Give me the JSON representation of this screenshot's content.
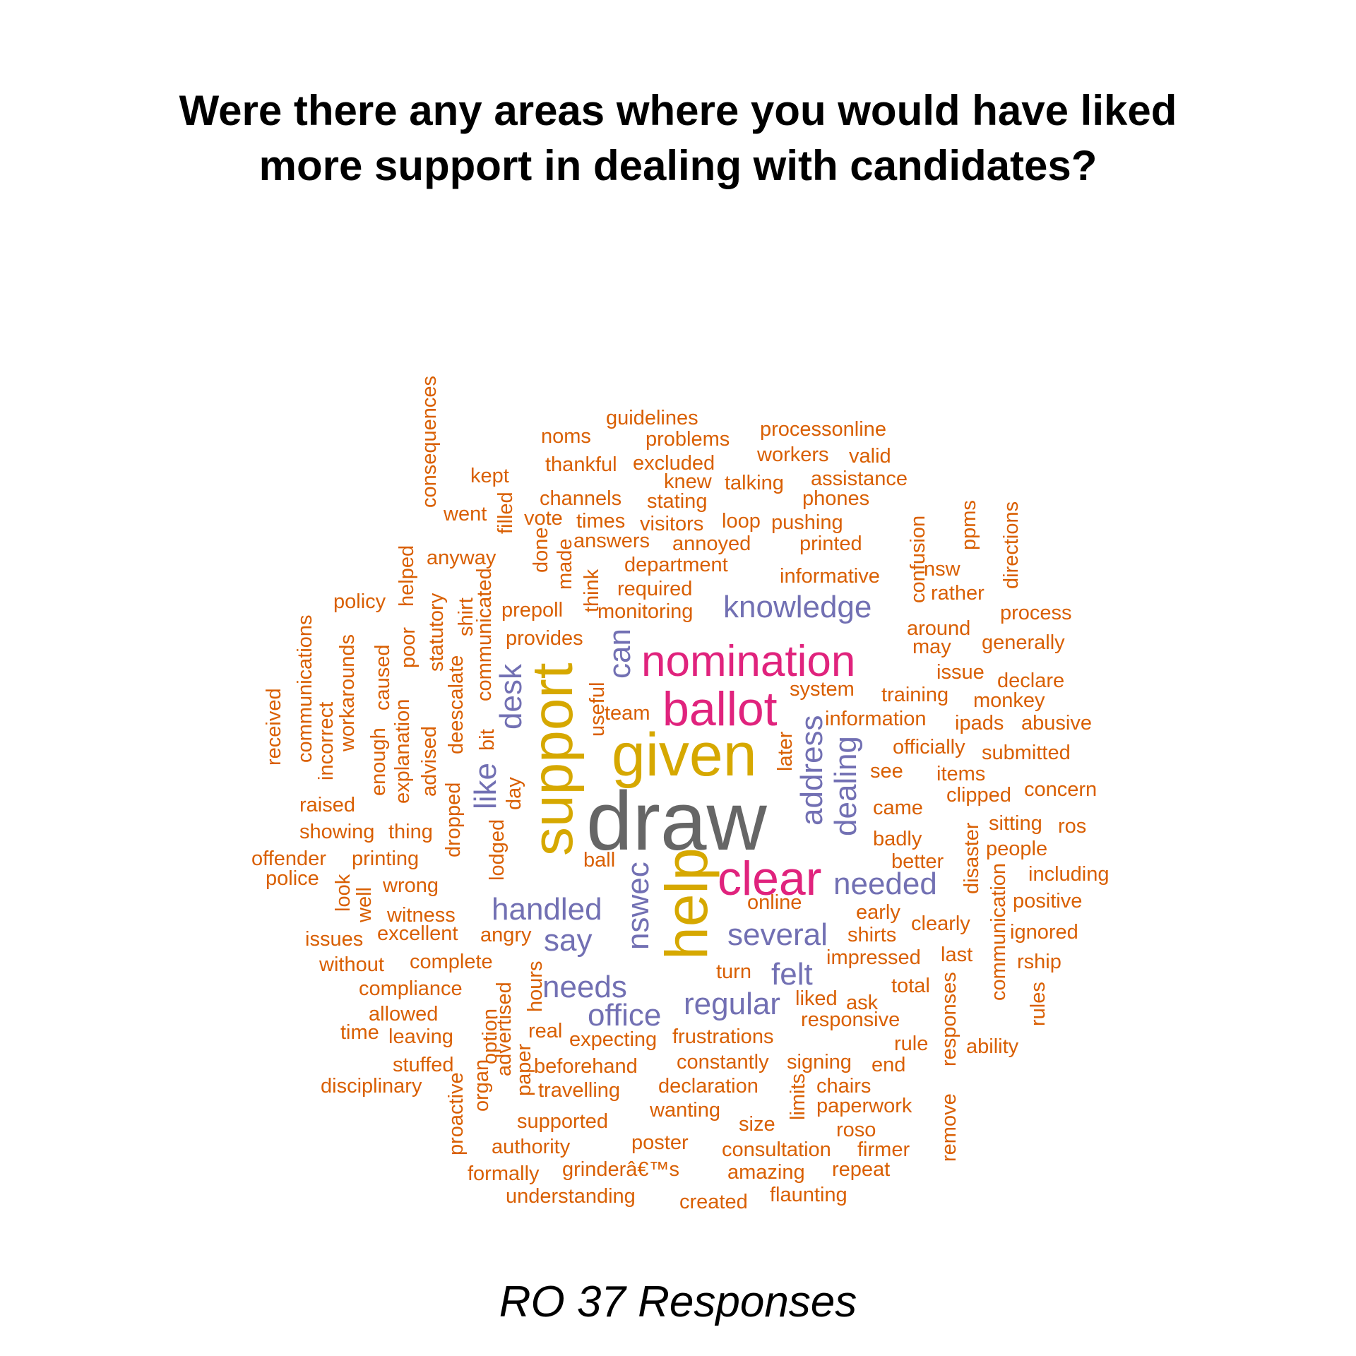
{
  "title": {
    "line1": "Were there any areas where you would have liked",
    "line2": "more support in dealing with candidates?"
  },
  "caption": "RO 37 Responses",
  "colors": {
    "tier1": "#666666",
    "tier2": "#D6A800",
    "tier3": "#E0237D",
    "tier4": "#7270B3",
    "tier5": "#D95F02"
  },
  "words": [
    {
      "text": "draw",
      "tier": 1
    },
    {
      "text": "support",
      "tier": 2
    },
    {
      "text": "given",
      "tier": 2
    },
    {
      "text": "help",
      "tier": 2
    },
    {
      "text": "nomination",
      "tier": 3
    },
    {
      "text": "ballot",
      "tier": 3
    },
    {
      "text": "clear",
      "tier": 3
    },
    {
      "text": "knowledge",
      "tier": 4
    },
    {
      "text": "handled",
      "tier": 4
    },
    {
      "text": "needed",
      "tier": 4
    },
    {
      "text": "several",
      "tier": 4
    },
    {
      "text": "regular",
      "tier": 4
    },
    {
      "text": "needs",
      "tier": 4
    },
    {
      "text": "office",
      "tier": 4
    },
    {
      "text": "say",
      "tier": 4
    },
    {
      "text": "felt",
      "tier": 4
    },
    {
      "text": "can",
      "tier": 4
    },
    {
      "text": "desk",
      "tier": 4
    },
    {
      "text": "like",
      "tier": 4
    },
    {
      "text": "address",
      "tier": 4
    },
    {
      "text": "dealing",
      "tier": 4
    },
    {
      "text": "nswec",
      "tier": 4
    },
    {
      "text": "guidelines",
      "tier": 5
    },
    {
      "text": "noms",
      "tier": 5
    },
    {
      "text": "problems",
      "tier": 5
    },
    {
      "text": "processonline",
      "tier": 5
    },
    {
      "text": "thankful",
      "tier": 5
    },
    {
      "text": "excluded",
      "tier": 5
    },
    {
      "text": "workers",
      "tier": 5
    },
    {
      "text": "valid",
      "tier": 5
    },
    {
      "text": "kept",
      "tier": 5
    },
    {
      "text": "knew",
      "tier": 5
    },
    {
      "text": "talking",
      "tier": 5
    },
    {
      "text": "assistance",
      "tier": 5
    },
    {
      "text": "channels",
      "tier": 5
    },
    {
      "text": "stating",
      "tier": 5
    },
    {
      "text": "phones",
      "tier": 5
    },
    {
      "text": "went",
      "tier": 5
    },
    {
      "text": "vote",
      "tier": 5
    },
    {
      "text": "times",
      "tier": 5
    },
    {
      "text": "visitors",
      "tier": 5
    },
    {
      "text": "loop",
      "tier": 5
    },
    {
      "text": "pushing",
      "tier": 5
    },
    {
      "text": "answers",
      "tier": 5
    },
    {
      "text": "annoyed",
      "tier": 5
    },
    {
      "text": "printed",
      "tier": 5
    },
    {
      "text": "anyway",
      "tier": 5
    },
    {
      "text": "department",
      "tier": 5
    },
    {
      "text": "informative",
      "tier": 5
    },
    {
      "text": "nsw",
      "tier": 5
    },
    {
      "text": "required",
      "tier": 5
    },
    {
      "text": "rather",
      "tier": 5
    },
    {
      "text": "policy",
      "tier": 5
    },
    {
      "text": "prepoll",
      "tier": 5
    },
    {
      "text": "monitoring",
      "tier": 5
    },
    {
      "text": "process",
      "tier": 5
    },
    {
      "text": "around",
      "tier": 5
    },
    {
      "text": "provides",
      "tier": 5
    },
    {
      "text": "may",
      "tier": 5
    },
    {
      "text": "generally",
      "tier": 5
    },
    {
      "text": "issue",
      "tier": 5
    },
    {
      "text": "system",
      "tier": 5
    },
    {
      "text": "declare",
      "tier": 5
    },
    {
      "text": "training",
      "tier": 5
    },
    {
      "text": "monkey",
      "tier": 5
    },
    {
      "text": "team",
      "tier": 5
    },
    {
      "text": "information",
      "tier": 5
    },
    {
      "text": "ipads",
      "tier": 5
    },
    {
      "text": "abusive",
      "tier": 5
    },
    {
      "text": "officially",
      "tier": 5
    },
    {
      "text": "submitted",
      "tier": 5
    },
    {
      "text": "see",
      "tier": 5
    },
    {
      "text": "items",
      "tier": 5
    },
    {
      "text": "clipped",
      "tier": 5
    },
    {
      "text": "concern",
      "tier": 5
    },
    {
      "text": "raised",
      "tier": 5
    },
    {
      "text": "came",
      "tier": 5
    },
    {
      "text": "showing",
      "tier": 5
    },
    {
      "text": "thing",
      "tier": 5
    },
    {
      "text": "sitting",
      "tier": 5
    },
    {
      "text": "ros",
      "tier": 5
    },
    {
      "text": "badly",
      "tier": 5
    },
    {
      "text": "people",
      "tier": 5
    },
    {
      "text": "offender",
      "tier": 5
    },
    {
      "text": "printing",
      "tier": 5
    },
    {
      "text": "ball",
      "tier": 5
    },
    {
      "text": "better",
      "tier": 5
    },
    {
      "text": "police",
      "tier": 5
    },
    {
      "text": "including",
      "tier": 5
    },
    {
      "text": "wrong",
      "tier": 5
    },
    {
      "text": "online",
      "tier": 5
    },
    {
      "text": "positive",
      "tier": 5
    },
    {
      "text": "early",
      "tier": 5
    },
    {
      "text": "witness",
      "tier": 5
    },
    {
      "text": "clearly",
      "tier": 5
    },
    {
      "text": "issues",
      "tier": 5
    },
    {
      "text": "excellent",
      "tier": 5
    },
    {
      "text": "angry",
      "tier": 5
    },
    {
      "text": "shirts",
      "tier": 5
    },
    {
      "text": "ignored",
      "tier": 5
    },
    {
      "text": "impressed",
      "tier": 5
    },
    {
      "text": "last",
      "tier": 5
    },
    {
      "text": "without",
      "tier": 5
    },
    {
      "text": "complete",
      "tier": 5
    },
    {
      "text": "turn",
      "tier": 5
    },
    {
      "text": "rship",
      "tier": 5
    },
    {
      "text": "compliance",
      "tier": 5
    },
    {
      "text": "total",
      "tier": 5
    },
    {
      "text": "liked",
      "tier": 5
    },
    {
      "text": "ask",
      "tier": 5
    },
    {
      "text": "allowed",
      "tier": 5
    },
    {
      "text": "responsive",
      "tier": 5
    },
    {
      "text": "time",
      "tier": 5
    },
    {
      "text": "real",
      "tier": 5
    },
    {
      "text": "leaving",
      "tier": 5
    },
    {
      "text": "expecting",
      "tier": 5
    },
    {
      "text": "frustrations",
      "tier": 5
    },
    {
      "text": "rule",
      "tier": 5
    },
    {
      "text": "ability",
      "tier": 5
    },
    {
      "text": "stuffed",
      "tier": 5
    },
    {
      "text": "beforehand",
      "tier": 5
    },
    {
      "text": "constantly",
      "tier": 5
    },
    {
      "text": "signing",
      "tier": 5
    },
    {
      "text": "end",
      "tier": 5
    },
    {
      "text": "disciplinary",
      "tier": 5
    },
    {
      "text": "travelling",
      "tier": 5
    },
    {
      "text": "declaration",
      "tier": 5
    },
    {
      "text": "chairs",
      "tier": 5
    },
    {
      "text": "wanting",
      "tier": 5
    },
    {
      "text": "paperwork",
      "tier": 5
    },
    {
      "text": "supported",
      "tier": 5
    },
    {
      "text": "size",
      "tier": 5
    },
    {
      "text": "roso",
      "tier": 5
    },
    {
      "text": "authority",
      "tier": 5
    },
    {
      "text": "poster",
      "tier": 5
    },
    {
      "text": "consultation",
      "tier": 5
    },
    {
      "text": "firmer",
      "tier": 5
    },
    {
      "text": "formally",
      "tier": 5
    },
    {
      "text": "grinderâ€™s",
      "tier": 5
    },
    {
      "text": "amazing",
      "tier": 5
    },
    {
      "text": "repeat",
      "tier": 5
    },
    {
      "text": "understanding",
      "tier": 5
    },
    {
      "text": "created",
      "tier": 5
    },
    {
      "text": "flaunting",
      "tier": 5
    },
    {
      "text": "consequences",
      "tier": 5
    },
    {
      "text": "filled",
      "tier": 5
    },
    {
      "text": "done",
      "tier": 5
    },
    {
      "text": "made",
      "tier": 5
    },
    {
      "text": "think",
      "tier": 5
    },
    {
      "text": "helped",
      "tier": 5
    },
    {
      "text": "poor",
      "tier": 5
    },
    {
      "text": "statutory",
      "tier": 5
    },
    {
      "text": "shirt",
      "tier": 5
    },
    {
      "text": "communicated",
      "tier": 5
    },
    {
      "text": "communications",
      "tier": 5
    },
    {
      "text": "workarounds",
      "tier": 5
    },
    {
      "text": "received",
      "tier": 5
    },
    {
      "text": "incorrect",
      "tier": 5
    },
    {
      "text": "enough",
      "tier": 5
    },
    {
      "text": "caused",
      "tier": 5
    },
    {
      "text": "explanation",
      "tier": 5
    },
    {
      "text": "advised",
      "tier": 5
    },
    {
      "text": "deescalate",
      "tier": 5
    },
    {
      "text": "bit",
      "tier": 5
    },
    {
      "text": "dropped",
      "tier": 5
    },
    {
      "text": "day",
      "tier": 5
    },
    {
      "text": "lodged",
      "tier": 5
    },
    {
      "text": "useful",
      "tier": 5
    },
    {
      "text": "later",
      "tier": 5
    },
    {
      "text": "confusion",
      "tier": 5
    },
    {
      "text": "ppms",
      "tier": 5
    },
    {
      "text": "directions",
      "tier": 5
    },
    {
      "text": "disaster",
      "tier": 5
    },
    {
      "text": "communication",
      "tier": 5
    },
    {
      "text": "look",
      "tier": 5
    },
    {
      "text": "well",
      "tier": 5
    },
    {
      "text": "hours",
      "tier": 5
    },
    {
      "text": "advertised",
      "tier": 5
    },
    {
      "text": "option",
      "tier": 5
    },
    {
      "text": "organ",
      "tier": 5
    },
    {
      "text": "proactive",
      "tier": 5
    },
    {
      "text": "paper",
      "tier": 5
    },
    {
      "text": "limits",
      "tier": 5
    },
    {
      "text": "responses",
      "tier": 5
    },
    {
      "text": "remove",
      "tier": 5
    },
    {
      "text": "rules",
      "tier": 5
    }
  ]
}
